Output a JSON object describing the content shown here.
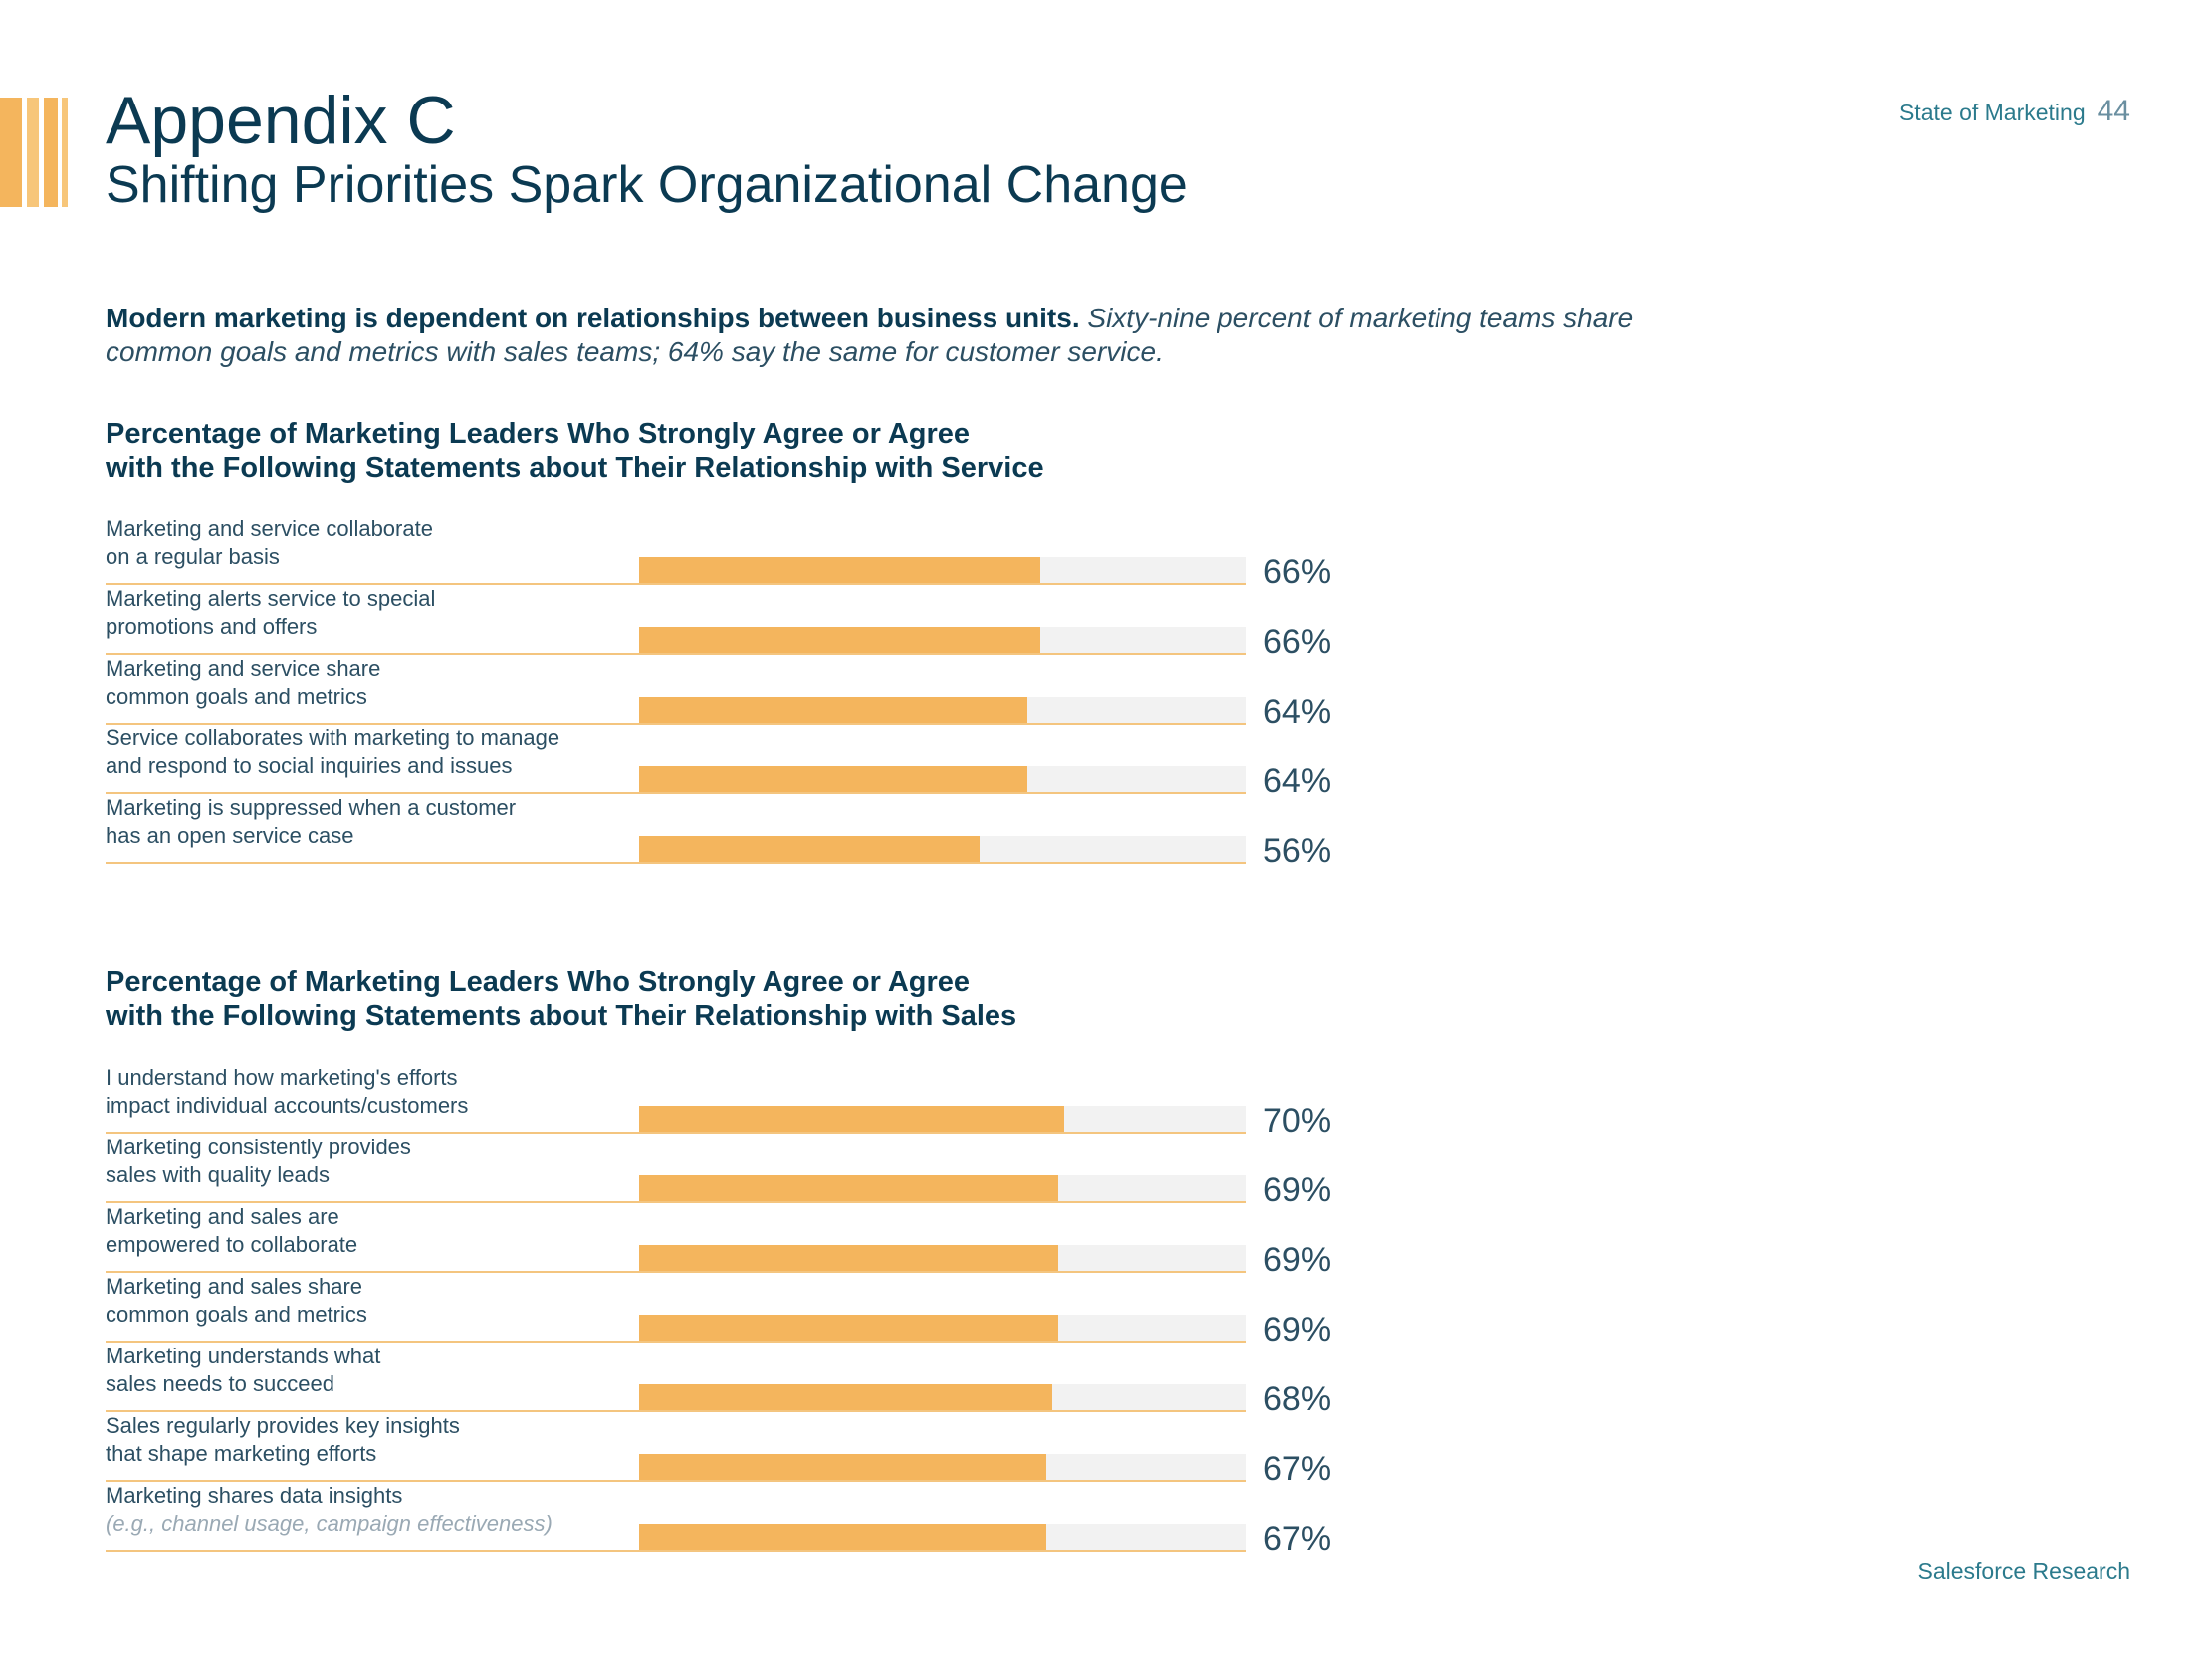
{
  "header": {
    "publication": "State of Marketing",
    "page_number": "44",
    "title": "Appendix C",
    "subtitle": "Shifting Priorities Spark Organizational Change"
  },
  "intro": {
    "bold": "Modern marketing is dependent on relationships between business units.",
    "italic": "Sixty-nine percent of marketing teams share common goals and metrics with sales teams; 64% say the same for customer service."
  },
  "footer": {
    "text": "Salesforce Research"
  },
  "colors": {
    "bar": "#f4b55d",
    "track": "#f2f2f2",
    "heading": "#0b3a52",
    "accent": "#2b7a8c"
  },
  "chart_data": [
    {
      "type": "bar",
      "orientation": "horizontal",
      "title": "Percentage of Marketing Leaders Who Strongly Agree or Agree with the Following Statements about Their Relationship with Service",
      "title_lines": [
        "Percentage of Marketing Leaders Who Strongly Agree or Agree",
        "with the Following Statements about Their Relationship with Service"
      ],
      "xlim": [
        0,
        100
      ],
      "categories": [
        {
          "line1": "Marketing and service collaborate",
          "line2": "on a regular basis",
          "line2_muted": false
        },
        {
          "line1": "Marketing alerts service to special",
          "line2": "promotions and offers",
          "line2_muted": false
        },
        {
          "line1": "Marketing and service share",
          "line2": "common goals and metrics",
          "line2_muted": false
        },
        {
          "line1": "Service collaborates with marketing to manage",
          "line2": "and respond to social inquiries and issues",
          "line2_muted": false
        },
        {
          "line1": "Marketing is suppressed when a customer",
          "line2": "has an open service case",
          "line2_muted": false
        }
      ],
      "values": [
        66,
        66,
        64,
        64,
        56
      ],
      "value_labels": [
        "66%",
        "66%",
        "64%",
        "64%",
        "56%"
      ]
    },
    {
      "type": "bar",
      "orientation": "horizontal",
      "title": "Percentage of Marketing Leaders Who Strongly Agree or Agree with the Following Statements about Their Relationship with Sales",
      "title_lines": [
        "Percentage of Marketing Leaders Who Strongly Agree or Agree",
        "with the Following Statements about Their Relationship with Sales"
      ],
      "xlim": [
        0,
        100
      ],
      "categories": [
        {
          "line1": "I understand how marketing's efforts",
          "line2": "impact individual accounts/customers",
          "line2_muted": false
        },
        {
          "line1": "Marketing consistently provides",
          "line2": "sales with quality leads",
          "line2_muted": false
        },
        {
          "line1": "Marketing and sales are",
          "line2": "empowered to collaborate",
          "line2_muted": false
        },
        {
          "line1": "Marketing and sales share",
          "line2": "common goals and metrics",
          "line2_muted": false
        },
        {
          "line1": "Marketing understands what",
          "line2": "sales needs to succeed",
          "line2_muted": false
        },
        {
          "line1": "Sales regularly provides key insights",
          "line2": "that shape marketing efforts",
          "line2_muted": false
        },
        {
          "line1": "Marketing shares data insights",
          "line2": "(e.g., channel usage, campaign effectiveness)",
          "line2_muted": true
        }
      ],
      "values": [
        70,
        69,
        69,
        69,
        68,
        67,
        67
      ],
      "value_labels": [
        "70%",
        "69%",
        "69%",
        "69%",
        "68%",
        "67%",
        "67%"
      ]
    }
  ]
}
